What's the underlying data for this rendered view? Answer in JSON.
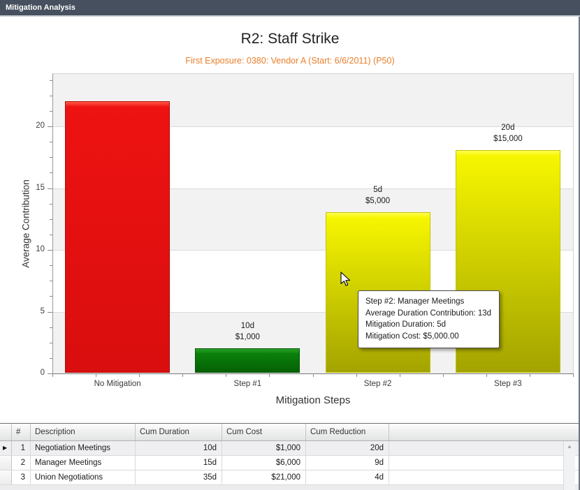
{
  "window": {
    "title": "Mitigation Analysis"
  },
  "chart_data": {
    "type": "bar",
    "title": "R2: Staff Strike",
    "subtitle": "First Exposure: 0380: Vendor A (Start: 6/6/2011) (P50)",
    "xlabel": "Mitigation Steps",
    "ylabel": "Average Contribution",
    "ylim": [
      0,
      24.3
    ],
    "yticks": [
      0,
      5,
      10,
      15,
      20
    ],
    "minor_tick_step": 1.25,
    "grid": true,
    "legend": "none",
    "band_colors": [
      "#f2f2f2",
      "#ffffff"
    ],
    "categories": [
      "No Mitigation",
      "Step #1",
      "Step #2",
      "Step #3"
    ],
    "bars": [
      {
        "category": "No Mitigation",
        "value": 22,
        "color_key": "red",
        "label_lines": []
      },
      {
        "category": "Step #1",
        "value": 2,
        "color_key": "green",
        "label_lines": [
          "10d",
          "$1,000"
        ]
      },
      {
        "category": "Step #2",
        "value": 13,
        "color_key": "yellow",
        "label_lines": [
          "5d",
          "$5,000"
        ]
      },
      {
        "category": "Step #3",
        "value": 18,
        "color_key": "yellow",
        "label_lines": [
          "20d",
          "$15,000"
        ]
      }
    ],
    "colors": {
      "red": {
        "top": "#ff5a45",
        "main": "#ee1212",
        "bottom": "#d90e0e",
        "border": "#b00a0a"
      },
      "green": {
        "top": "#2aa32a",
        "main": "#0a800a",
        "bottom": "#056005",
        "border": "#045504"
      },
      "yellow": {
        "top": "#ffff55",
        "main": "#f6f600",
        "bottom": "#a3a300",
        "border": "#c2c200"
      }
    }
  },
  "tooltip": {
    "lines": [
      "Step #2: Manager Meetings",
      "Average Duration Contribution: 13d",
      "Mitigation Duration: 5d",
      "Mitigation Cost: $5,000.00"
    ]
  },
  "table": {
    "columns": [
      "#",
      "Description",
      "Cum Duration",
      "Cum Cost",
      "Cum Reduction"
    ],
    "rows": [
      [
        "1",
        "Negotiation Meetings",
        "10d",
        "$1,000",
        "20d"
      ],
      [
        "2",
        "Manager Meetings",
        "15d",
        "$6,000",
        "9d"
      ],
      [
        "3",
        "Union Negotiations",
        "35d",
        "$21,000",
        "4d"
      ]
    ],
    "selected_row_index": 0,
    "scrollbar_up_glyph": "▲",
    "selected_row_glyph": "▶"
  },
  "theme_colors": {
    "titlebar_bg": "#47505e",
    "subtitle_text": "#e87e2b",
    "band_gray": "#f2f2f2"
  }
}
